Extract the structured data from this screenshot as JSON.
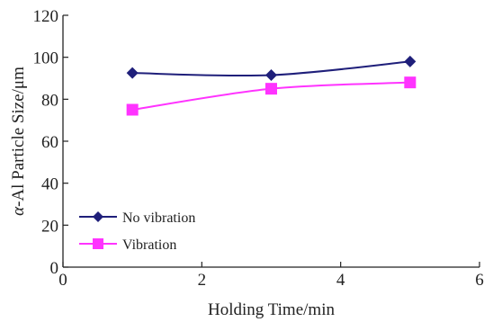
{
  "chart_data": {
    "type": "line",
    "xlabel": "Holding Time/min",
    "ylabel_prefix": "α",
    "ylabel": "-Al Particle Size/μm",
    "xlim": [
      0,
      6
    ],
    "ylim": [
      0,
      120
    ],
    "x_ticks": [
      0,
      2,
      4,
      6
    ],
    "y_ticks": [
      0,
      20,
      40,
      60,
      80,
      100,
      120
    ],
    "grid": false,
    "legend_position": "bottom-left",
    "series": [
      {
        "name": "No vibration",
        "marker": "diamond",
        "color": "#1f1f7a",
        "x": [
          1,
          3,
          5
        ],
        "y": [
          92.5,
          91.5,
          98
        ]
      },
      {
        "name": "Vibration",
        "marker": "square",
        "color": "#ff33ff",
        "x": [
          1,
          3,
          5
        ],
        "y": [
          75,
          85,
          88
        ]
      }
    ]
  }
}
